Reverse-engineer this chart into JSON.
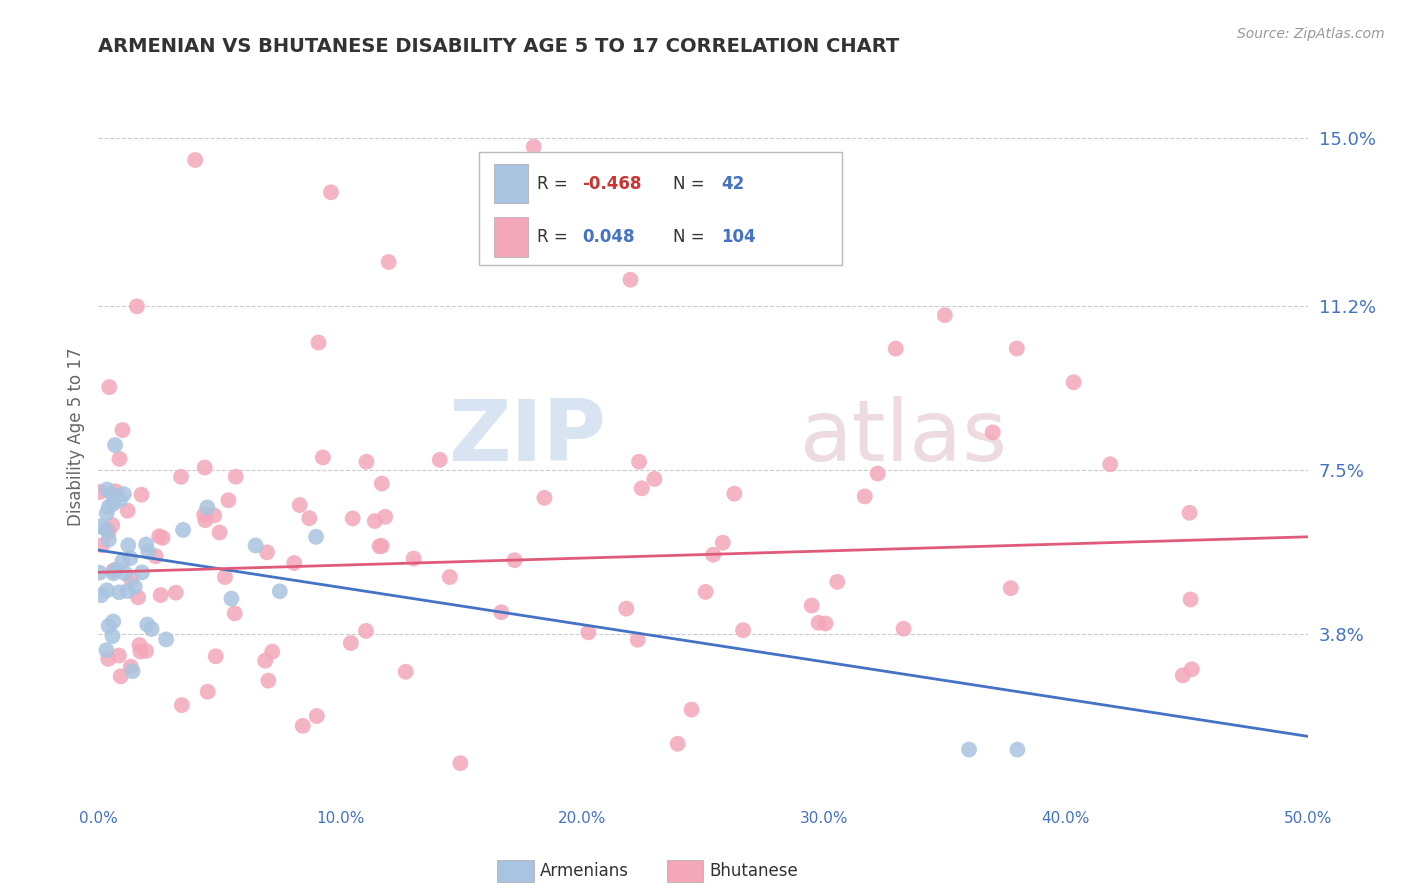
{
  "title": "ARMENIAN VS BHUTANESE DISABILITY AGE 5 TO 17 CORRELATION CHART",
  "source": "Source: ZipAtlas.com",
  "ylabel": "Disability Age 5 to 17",
  "xlim": [
    0.0,
    0.5
  ],
  "ylim": [
    0.0,
    0.165
  ],
  "xticks": [
    0.0,
    0.1,
    0.2,
    0.3,
    0.4,
    0.5
  ],
  "xticklabels": [
    "0.0%",
    "10.0%",
    "20.0%",
    "30.0%",
    "40.0%",
    "50.0%"
  ],
  "ytick_positions": [
    0.038,
    0.075,
    0.112,
    0.15
  ],
  "ytick_labels": [
    "3.8%",
    "7.5%",
    "11.2%",
    "15.0%"
  ],
  "armenian_color": "#a8c4e0",
  "bhutanese_color": "#f4a7b9",
  "trend_armenian_color": "#4472c4",
  "trend_bhutanese_color": "#e05a7a",
  "legend_R_armenian": "-0.468",
  "legend_N_armenian": "42",
  "legend_R_bhutanese": "0.048",
  "legend_N_bhutanese": "104",
  "watermark_text": "ZIP",
  "watermark_text2": "atlas",
  "background_color": "#ffffff",
  "grid_color": "#cccccc",
  "title_color": "#333333",
  "source_color": "#999999",
  "tick_color": "#4472c4",
  "axis_label_color": "#666666",
  "legend_text_color": "#333333",
  "legend_value_color": "#4472c4",
  "legend_neg_color": "#cc3333"
}
